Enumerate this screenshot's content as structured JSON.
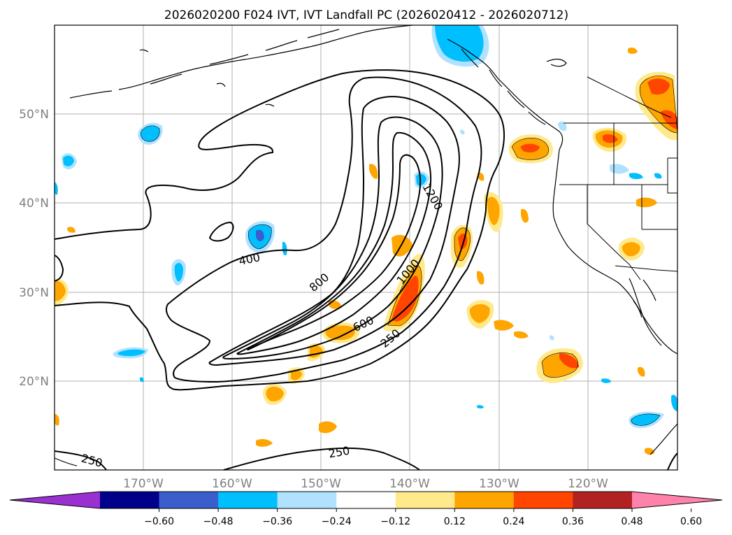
{
  "title": "2026020200 F024 IVT, IVT Landfall PC (2026020412 - 2026020712)",
  "latitude_labels": [
    "50°N",
    "40°N",
    "30°N",
    "20°N"
  ],
  "longitude_labels": [
    "170°W",
    "160°W",
    "150°W",
    "140°W",
    "130°W",
    "120°W"
  ],
  "contour_labels": {
    "c250_a": "250",
    "c250_b": "250",
    "c250_c": "250",
    "c400": "400",
    "c600": "600",
    "c800": "800",
    "c1000": "1000",
    "c1200": "1200"
  },
  "colorbar": {
    "ticks": [
      "−0.60",
      "−0.48",
      "−0.36",
      "−0.24",
      "−0.12",
      "0.12",
      "0.24",
      "0.36",
      "0.48",
      "0.60"
    ],
    "colors": [
      "#9b30d0",
      "#00008b",
      "#3a5fcd",
      "#00bfff",
      "#b0e2ff",
      "#ffffff",
      "#ffe98a",
      "#ffa500",
      "#ff4500",
      "#b22222",
      "#ff82ab"
    ]
  },
  "map_colors": {
    "land_outline": "#000000",
    "grid": "#b0b0b0",
    "pos_light": "#ffe98a",
    "pos_mid": "#ffa500",
    "pos_high": "#ff4500",
    "neg_light": "#b0e2ff",
    "neg_mid": "#00bfff",
    "neg_high": "#3a5fcd"
  }
}
